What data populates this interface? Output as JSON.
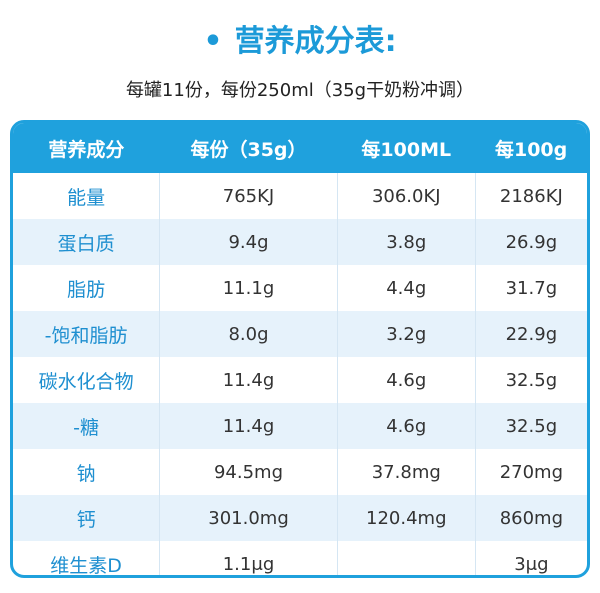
{
  "header": {
    "title": "营养成分表:",
    "subtitle": "每罐11份，每份250ml（35g干奶粉冲调）"
  },
  "table": {
    "columns": [
      "营养成分",
      "每份（35g）",
      "每100ML",
      "每100g"
    ],
    "rows": [
      [
        "能量",
        "765KJ",
        "306.0KJ",
        "2186KJ"
      ],
      [
        "蛋白质",
        "9.4g",
        "3.8g",
        "26.9g"
      ],
      [
        "脂肪",
        "11.1g",
        "4.4g",
        "31.7g"
      ],
      [
        "-饱和脂肪",
        "8.0g",
        "3.2g",
        "22.9g"
      ],
      [
        "碳水化合物",
        "11.4g",
        "4.6g",
        "32.5g"
      ],
      [
        "-糖",
        "11.4g",
        "4.6g",
        "32.5g"
      ],
      [
        "钠",
        "94.5mg",
        "37.8mg",
        "270mg"
      ],
      [
        "钙",
        "301.0mg",
        "120.4mg",
        "860mg"
      ],
      [
        "维生素D",
        "1.1μg",
        null,
        "3μg"
      ]
    ]
  }
}
